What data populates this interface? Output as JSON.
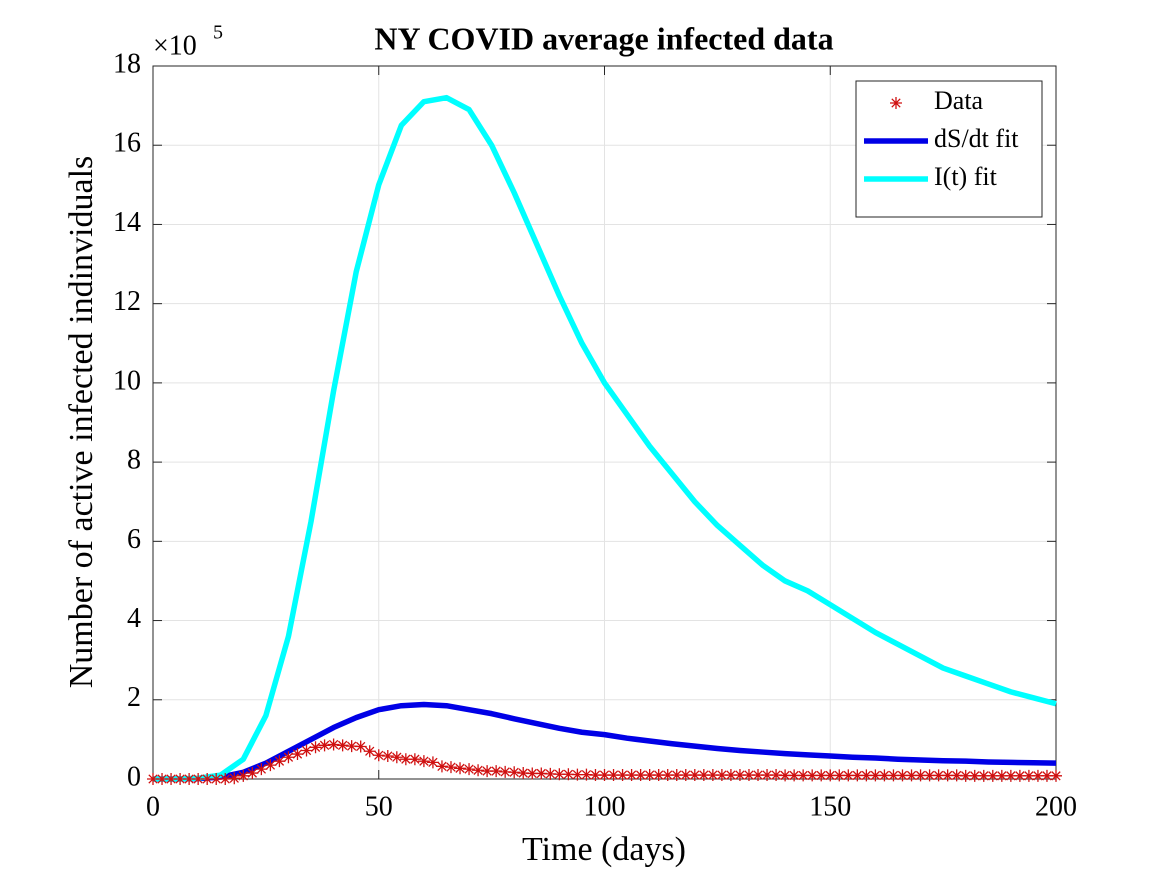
{
  "chart_data": {
    "type": "line",
    "title": "NY COVID average infected data",
    "xlabel": "Time (days)",
    "ylabel": "Number of active infected indinviduals",
    "y_multiplier": "×10",
    "y_multiplier_exponent": "5",
    "xlim": [
      0,
      200
    ],
    "xticks": [
      0,
      50,
      100,
      150,
      200
    ],
    "ylim": [
      0,
      18
    ],
    "yticks": [
      0,
      2,
      4,
      6,
      8,
      10,
      12,
      14,
      16,
      18
    ],
    "grid": true,
    "legend": "top-right",
    "series": [
      {
        "name": "Data",
        "color": "#d01010",
        "mode": "markers",
        "x": [
          0,
          2,
          4,
          6,
          8,
          10,
          12,
          14,
          16,
          18,
          20,
          22,
          24,
          26,
          28,
          30,
          32,
          34,
          36,
          38,
          40,
          42,
          44,
          46,
          48,
          50,
          52,
          54,
          56,
          58,
          60,
          62,
          64,
          66,
          68,
          70,
          72,
          74,
          76,
          78,
          80,
          82,
          84,
          86,
          88,
          90,
          92,
          94,
          96,
          98,
          100,
          102,
          104,
          106,
          108,
          110,
          112,
          114,
          116,
          118,
          120,
          122,
          124,
          126,
          128,
          130,
          132,
          134,
          136,
          138,
          140,
          142,
          144,
          146,
          148,
          150,
          152,
          154,
          156,
          158,
          160,
          162,
          164,
          166,
          168,
          170,
          172,
          174,
          176,
          178,
          180,
          182,
          184,
          186,
          188,
          190,
          192,
          194,
          196,
          198,
          200
        ],
        "values": [
          0,
          0,
          0,
          0,
          0,
          0,
          0,
          0,
          0,
          0.02,
          0.08,
          0.15,
          0.25,
          0.35,
          0.45,
          0.55,
          0.63,
          0.72,
          0.8,
          0.85,
          0.87,
          0.85,
          0.83,
          0.82,
          0.7,
          0.6,
          0.58,
          0.55,
          0.5,
          0.5,
          0.45,
          0.42,
          0.32,
          0.3,
          0.27,
          0.25,
          0.22,
          0.2,
          0.2,
          0.18,
          0.17,
          0.15,
          0.14,
          0.14,
          0.13,
          0.12,
          0.12,
          0.11,
          0.11,
          0.1,
          0.1,
          0.1,
          0.1,
          0.1,
          0.1,
          0.1,
          0.1,
          0.1,
          0.1,
          0.1,
          0.1,
          0.1,
          0.1,
          0.1,
          0.1,
          0.1,
          0.1,
          0.1,
          0.1,
          0.1,
          0.09,
          0.09,
          0.09,
          0.09,
          0.09,
          0.09,
          0.09,
          0.09,
          0.09,
          0.09,
          0.09,
          0.09,
          0.09,
          0.09,
          0.09,
          0.09,
          0.09,
          0.09,
          0.09,
          0.09,
          0.08,
          0.08,
          0.08,
          0.08,
          0.08,
          0.08,
          0.08,
          0.08,
          0.08,
          0.08,
          0.08
        ]
      },
      {
        "name": "dS/dt fit",
        "color": "#0000e6",
        "mode": "line",
        "x": [
          0,
          5,
          10,
          15,
          20,
          25,
          30,
          35,
          40,
          45,
          50,
          55,
          60,
          65,
          70,
          75,
          80,
          85,
          90,
          95,
          100,
          105,
          110,
          115,
          120,
          125,
          130,
          135,
          140,
          145,
          150,
          155,
          160,
          165,
          170,
          175,
          180,
          185,
          190,
          195,
          200
        ],
        "values": [
          0,
          0,
          0.01,
          0.05,
          0.17,
          0.4,
          0.7,
          1.0,
          1.3,
          1.55,
          1.75,
          1.85,
          1.88,
          1.85,
          1.75,
          1.65,
          1.52,
          1.4,
          1.28,
          1.18,
          1.12,
          1.03,
          0.96,
          0.89,
          0.83,
          0.77,
          0.72,
          0.68,
          0.64,
          0.61,
          0.58,
          0.55,
          0.53,
          0.5,
          0.48,
          0.46,
          0.45,
          0.43,
          0.42,
          0.41,
          0.4
        ]
      },
      {
        "name": "I(t) fit",
        "color": "#00ffff",
        "mode": "line",
        "x": [
          0,
          5,
          10,
          15,
          20,
          25,
          30,
          35,
          40,
          45,
          50,
          55,
          60,
          65,
          70,
          75,
          80,
          85,
          90,
          95,
          100,
          105,
          110,
          115,
          120,
          125,
          130,
          135,
          140,
          145,
          150,
          155,
          160,
          165,
          170,
          175,
          180,
          185,
          190,
          195,
          200
        ],
        "values": [
          0,
          0,
          0.02,
          0.1,
          0.5,
          1.6,
          3.6,
          6.5,
          9.8,
          12.8,
          15.0,
          16.5,
          17.1,
          17.2,
          16.9,
          16.0,
          14.8,
          13.5,
          12.2,
          11.0,
          10.0,
          9.2,
          8.4,
          7.7,
          7.0,
          6.4,
          5.9,
          5.4,
          5.0,
          4.75,
          4.4,
          4.05,
          3.7,
          3.4,
          3.1,
          2.8,
          2.6,
          2.4,
          2.2,
          2.05,
          1.9
        ]
      }
    ]
  }
}
